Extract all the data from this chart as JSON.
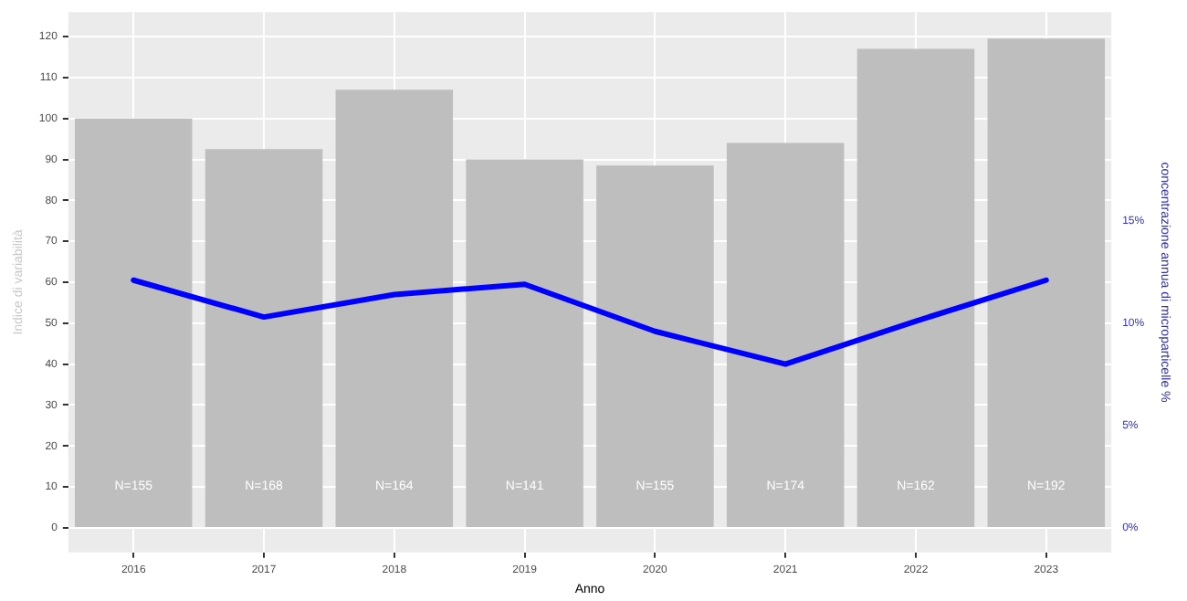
{
  "chart_data": {
    "type": "bar",
    "xlabel": "Anno",
    "ylabel": "Indice di variabilità",
    "y2label": "concentrazione annua di microparticelle %",
    "categories": [
      "2016",
      "2017",
      "2018",
      "2019",
      "2020",
      "2021",
      "2022",
      "2023"
    ],
    "series": [
      {
        "color": "#bebebe",
        "values": [
          100,
          92.5,
          107,
          90,
          88.5,
          94,
          117,
          119.5
        ]
      },
      {
        "type": "line",
        "axis": "y2",
        "color": "#0000ff",
        "values": [
          12.1,
          10.3,
          11.4,
          11.9,
          9.6,
          8.0,
          10.1,
          12.1
        ]
      }
    ],
    "ylim": [
      -6,
      126
    ],
    "yticks": [
      0,
      10,
      20,
      30,
      40,
      50,
      60,
      70,
      80,
      90,
      100,
      110,
      120
    ],
    "y2lim": [
      -1.2,
      25.2
    ],
    "y2ticks": [
      {
        "value": 0,
        "label": "0%"
      },
      {
        "value": 5,
        "label": "5%"
      },
      {
        "value": 10,
        "label": "10%"
      },
      {
        "value": 15,
        "label": "15%"
      }
    ],
    "grid": true,
    "legend": false,
    "marker": "none",
    "line_style": "solid",
    "annotations": [
      "N=155",
      "N=168",
      "N=164",
      "N=141",
      "N=155",
      "N=174",
      "N=162",
      "N=192"
    ]
  }
}
